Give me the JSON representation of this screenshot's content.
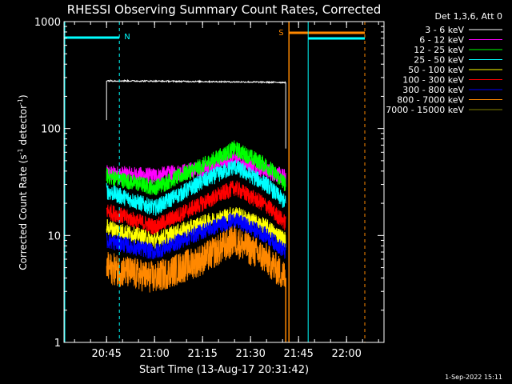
{
  "chart_data": {
    "type": "line",
    "title": "RHESSI Observing Summary Count Rates, Corrected",
    "xlabel": "Start Time (13-Aug-17 20:31:42)",
    "ylabel": "Corrected Count Rate (s⁻¹ detector⁻¹)",
    "ylabel_main": "Corrected Count Rate (s",
    "ylabel_sup1": "-1",
    "ylabel_mid": " detector",
    "ylabel_sup2": "-1",
    "ylabel_end": ")",
    "y_scale": "log",
    "ylim": [
      1,
      1000
    ],
    "xlim": [
      "20:31:42",
      "22:11:42"
    ],
    "x_ticks": [
      "20:45",
      "21:00",
      "21:15",
      "21:30",
      "21:45",
      "22:00"
    ],
    "y_ticks": [
      "1",
      "10",
      "100",
      "1000"
    ],
    "legend_title": "Det 1,3,6, Att 0",
    "legend_position": "right",
    "footer_date": "1-Sep-2022 15:11",
    "markers": [
      {
        "label": "N",
        "time": "20:49",
        "color": "#00ffff"
      },
      {
        "label": "S",
        "time": "21:42",
        "color": "#ff8800"
      }
    ],
    "series": [
      {
        "name": "3 - 6 keV",
        "color": "#ffffff",
        "points": [
          [
            "20:45",
            280
          ],
          [
            "21:15",
            275
          ],
          [
            "21:41",
            270
          ]
        ]
      },
      {
        "name": "6 - 12 keV",
        "color": "#ff00ff",
        "points": [
          [
            "20:45",
            38
          ],
          [
            "21:00",
            36
          ],
          [
            "21:15",
            42
          ],
          [
            "21:25",
            52
          ],
          [
            "21:35",
            40
          ],
          [
            "21:41",
            35
          ]
        ]
      },
      {
        "name": "12 - 25 keV",
        "color": "#00ff00",
        "points": [
          [
            "20:45",
            36
          ],
          [
            "21:00",
            28
          ],
          [
            "21:15",
            45
          ],
          [
            "21:25",
            65
          ],
          [
            "21:35",
            45
          ],
          [
            "21:41",
            30
          ]
        ]
      },
      {
        "name": "25 - 50 keV",
        "color": "#00ffff",
        "points": [
          [
            "20:45",
            26
          ],
          [
            "21:00",
            18
          ],
          [
            "21:15",
            32
          ],
          [
            "21:25",
            44
          ],
          [
            "21:35",
            30
          ],
          [
            "21:41",
            20
          ]
        ]
      },
      {
        "name": "50 - 100 keV",
        "color": "#ffff00",
        "points": [
          [
            "20:45",
            12
          ],
          [
            "21:00",
            9
          ],
          [
            "21:15",
            13
          ],
          [
            "21:25",
            16
          ],
          [
            "21:35",
            12
          ],
          [
            "21:41",
            9
          ]
        ]
      },
      {
        "name": "100 - 300 keV",
        "color": "#ff0000",
        "points": [
          [
            "20:45",
            17
          ],
          [
            "21:00",
            12
          ],
          [
            "21:15",
            20
          ],
          [
            "21:25",
            28
          ],
          [
            "21:35",
            19
          ],
          [
            "21:41",
            13
          ]
        ]
      },
      {
        "name": "300 - 800 keV",
        "color": "#0000ff",
        "points": [
          [
            "20:45",
            9
          ],
          [
            "21:00",
            7
          ],
          [
            "21:15",
            11
          ],
          [
            "21:25",
            14
          ],
          [
            "21:35",
            10
          ],
          [
            "21:41",
            7
          ]
        ]
      },
      {
        "name": "800 - 7000 keV",
        "color": "#ff8800",
        "points": [
          [
            "20:45",
            5
          ],
          [
            "21:00",
            4
          ],
          [
            "21:15",
            6
          ],
          [
            "21:25",
            9
          ],
          [
            "21:35",
            6
          ],
          [
            "21:41",
            4
          ]
        ]
      },
      {
        "name": "7000 - 15000 keV",
        "color": "#808000",
        "points": []
      }
    ]
  }
}
